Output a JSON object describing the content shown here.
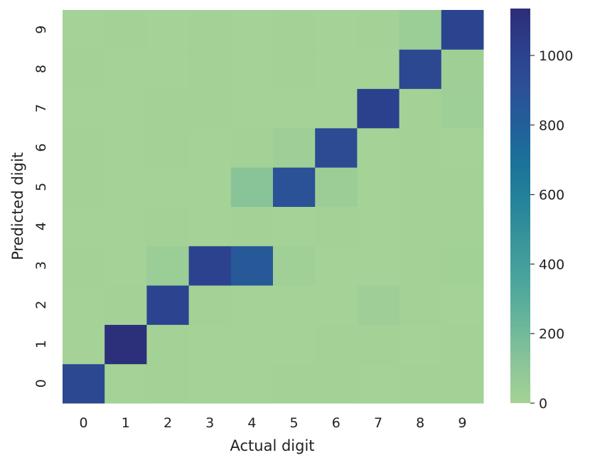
{
  "chart_data": {
    "type": "heatmap",
    "title": "",
    "xlabel": "Actual digit",
    "ylabel": "Predicted digit",
    "x_categories": [
      "0",
      "1",
      "2",
      "3",
      "4",
      "5",
      "6",
      "7",
      "8",
      "9"
    ],
    "y_categories": [
      "0",
      "1",
      "2",
      "3",
      "4",
      "5",
      "6",
      "7",
      "8",
      "9"
    ],
    "y_order": "bottom-to-top",
    "values_note_rows_are_predicted_columns_are_actual": true,
    "values": [
      [
        960,
        0,
        5,
        2,
        1,
        5,
        8,
        2,
        6,
        5
      ],
      [
        0,
        1120,
        3,
        0,
        0,
        1,
        3,
        5,
        2,
        5
      ],
      [
        2,
        4,
        990,
        8,
        1,
        2,
        2,
        25,
        5,
        2
      ],
      [
        3,
        2,
        45,
        1000,
        850,
        20,
        2,
        2,
        10,
        12
      ],
      [
        0,
        0,
        4,
        0,
        5,
        2,
        3,
        1,
        5,
        8
      ],
      [
        4,
        1,
        2,
        2,
        120,
        900,
        40,
        0,
        5,
        4
      ],
      [
        6,
        2,
        4,
        0,
        8,
        25,
        940,
        0,
        3,
        2
      ],
      [
        2,
        1,
        5,
        4,
        1,
        2,
        0,
        1010,
        4,
        30
      ],
      [
        3,
        1,
        0,
        5,
        2,
        3,
        0,
        2,
        960,
        22
      ],
      [
        2,
        3,
        2,
        3,
        2,
        5,
        1,
        5,
        45,
        990
      ]
    ],
    "vmin": 0,
    "vmax": 1135,
    "colormap": "crest",
    "colormap_stops": [
      "#a5d296",
      "#8bc598",
      "#6ab69b",
      "#4ea69c",
      "#3a979b",
      "#26859b",
      "#1a749a",
      "#22609a",
      "#2c5096",
      "#2c3f8c",
      "#2c2e78"
    ],
    "colorbar": {
      "ticks": [
        0,
        200,
        400,
        600,
        800,
        1000
      ],
      "tick_labels": [
        "0",
        "200",
        "400",
        "600",
        "800",
        "1000"
      ]
    },
    "grid": false,
    "legend": "colorbar-right"
  }
}
